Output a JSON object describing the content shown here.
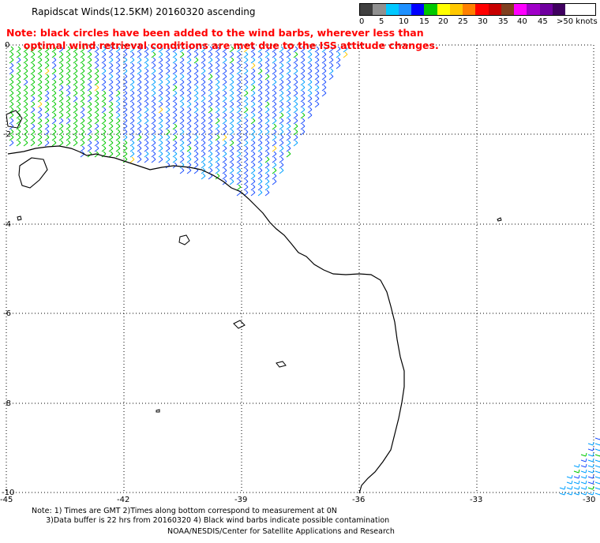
{
  "title": "Rapidscat Winds(12.5KM) 20160320 ascending",
  "legend": {
    "colors": [
      "#404040",
      "#909090",
      "#00c8ff",
      "#1e90ff",
      "#0000ff",
      "#00c800",
      "#ffff00",
      "#ffc800",
      "#ff8000",
      "#ff0000",
      "#c80000",
      "#804020",
      "#ff00ff",
      "#a000c8",
      "#7000a0",
      "#400060"
    ],
    "labels": [
      "0",
      "5",
      "10",
      "15",
      "20",
      "25",
      "30",
      "35",
      "40",
      "45",
      ">50 knots"
    ]
  },
  "note": "Note: black circles have been added to the wind barbs, wherever less than\n     optimal wind retrieval conditions are met due to the ISS attitude changes.",
  "axes": {
    "y_labels": [
      "0",
      "-2",
      "-4",
      "-6",
      "-8",
      "-10"
    ],
    "x_labels": [
      "-45",
      "-42",
      "-39",
      "-36",
      "-33",
      "-30"
    ]
  },
  "footer": "Note: 1) Times are GMT 2)Times along bottom correspond to measurement at 0N\n      3)Data buffer is 22 hrs from 20160320 4) Black wind barbs indicate possible contamination",
  "credit": "NOAA/NESDIS/Center for Satellite Applications and Research"
}
